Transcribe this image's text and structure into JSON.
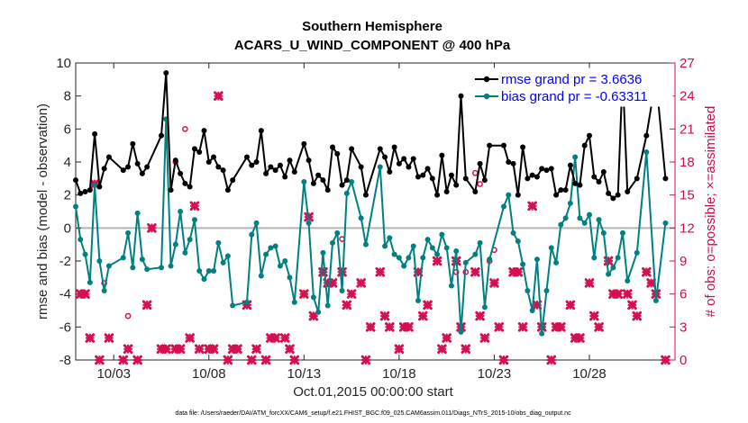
{
  "chart_data": {
    "type": "line",
    "title": "Southern Hemisphere",
    "subtitle": "ACARS_U_WIND_COMPONENT @ 400 hPa",
    "xlabel": "Oct.01,2015 00:00:00 start",
    "ylabel": "rmse and bias (model - observation)",
    "ylabel_right": "# of obs: o=possible; ×=assimilated",
    "xlim": [
      1,
      32.5
    ],
    "ylim": [
      -8,
      10
    ],
    "ylim_right": [
      0,
      27
    ],
    "x_tick_values": [
      3,
      8,
      13,
      18,
      23,
      28
    ],
    "x_tick_labels": [
      "10/03",
      "10/08",
      "10/13",
      "10/18",
      "10/23",
      "10/28"
    ],
    "y_tick_labels": [
      "-8",
      "-6",
      "-4",
      "-2",
      "0",
      "2",
      "4",
      "6",
      "8",
      "10"
    ],
    "y_right_tick_labels": [
      "0",
      "3",
      "6",
      "9",
      "12",
      "15",
      "18",
      "21",
      "24",
      "27"
    ],
    "footer": "data file: /Users/raeder/DAI/ATM_forcXX/CAM6_setup/f.e21.FHIST_BGC.f09_025.CAM6assim.011/Diags_NTrS_2015-10/obs_diag_output.nc",
    "series": [
      {
        "name": "rmse",
        "legend": "rmse grand pr = 3.6636",
        "color": "#000000",
        "x": [
          1.0,
          1.25,
          1.5,
          1.75,
          2.0,
          2.25,
          2.5,
          2.75,
          3.5,
          3.75,
          4.0,
          4.25,
          4.5,
          4.75,
          5.5,
          5.75,
          6.0,
          6.25,
          6.5,
          6.75,
          7.0,
          7.25,
          7.5,
          7.75,
          8.0,
          8.25,
          8.5,
          8.75,
          9.0,
          9.25,
          10.0,
          10.25,
          10.5,
          10.75,
          11.0,
          11.25,
          11.5,
          11.75,
          12.0,
          12.25,
          12.5,
          13.0,
          13.25,
          13.5,
          13.75,
          14.0,
          14.25,
          14.5,
          14.75,
          15.0,
          15.25,
          15.5,
          16.0,
          16.25,
          17.0,
          17.25,
          17.5,
          17.75,
          18.0,
          18.25,
          18.5,
          18.75,
          19.0,
          19.25,
          19.5,
          19.75,
          20.0,
          20.25,
          20.5,
          20.75,
          21.0,
          21.25,
          21.5,
          22.0,
          22.25,
          22.5,
          22.75,
          23.5,
          23.75,
          24.0,
          24.25,
          24.5,
          24.75,
          25.0,
          25.25,
          25.5,
          25.75,
          26.0,
          26.25,
          26.5,
          26.75,
          27.0,
          27.25,
          27.5,
          27.75,
          28.0,
          28.25,
          28.5,
          28.75,
          29.0,
          29.25,
          29.5,
          29.75,
          30.0,
          30.5,
          31.0,
          31.5,
          32.0
        ],
        "values": [
          2.9,
          2.1,
          2.2,
          2.3,
          5.7,
          2.5,
          3.6,
          4.3,
          3.5,
          3.7,
          5.1,
          3.9,
          3.3,
          3.7,
          5.6,
          9.4,
          2.3,
          4.1,
          3.3,
          2.7,
          2.5,
          4.8,
          4.6,
          5.9,
          4.0,
          4.3,
          3.7,
          3.5,
          2.3,
          2.9,
          4.3,
          3.8,
          4.0,
          5.9,
          3.3,
          3.7,
          3.5,
          3.8,
          3.1,
          4.1,
          3.4,
          5.1,
          4.1,
          2.7,
          3.2,
          2.9,
          2.3,
          4.9,
          4.5,
          2.6,
          2.9,
          4.8,
          3.7,
          2.0,
          4.8,
          4.3,
          3.4,
          4.9,
          3.9,
          4.2,
          3.7,
          4.2,
          3.1,
          3.2,
          3.6,
          3.0,
          2.0,
          4.4,
          2.2,
          3.2,
          2.6,
          8.0,
          3.0,
          2.2,
          3.9,
          2.9,
          5.0,
          5.0,
          4.0,
          3.9,
          2.0,
          4.9,
          3.0,
          3.2,
          3.1,
          3.6,
          3.5,
          3.6,
          2.0,
          2.3,
          2.3,
          3.8,
          2.7,
          2.6,
          5.0,
          5.6,
          3.1,
          2.8,
          3.4,
          2.1,
          1.8,
          2.0,
          9.4,
          2.2,
          3.0,
          5.6,
          9.1,
          3.0
        ]
      },
      {
        "name": "bias",
        "legend": "bias grand pr = -0.63311",
        "color": "#008080",
        "x": [
          1.0,
          1.25,
          1.5,
          1.75,
          2.0,
          2.25,
          2.5,
          2.75,
          3.5,
          3.75,
          4.0,
          4.25,
          4.5,
          4.75,
          5.5,
          5.75,
          6.0,
          6.25,
          6.5,
          6.75,
          7.0,
          7.25,
          7.5,
          7.75,
          8.0,
          8.25,
          8.5,
          8.75,
          9.0,
          9.25,
          10.0,
          10.25,
          10.5,
          10.75,
          11.0,
          11.25,
          11.5,
          11.75,
          12.0,
          12.25,
          12.5,
          13.0,
          13.25,
          13.5,
          13.75,
          14.0,
          14.25,
          14.5,
          14.75,
          15.0,
          15.25,
          15.5,
          16.0,
          16.25,
          17.0,
          17.25,
          17.5,
          17.75,
          18.0,
          18.25,
          18.5,
          18.75,
          19.0,
          19.25,
          19.5,
          19.75,
          20.0,
          20.25,
          20.5,
          20.75,
          21.0,
          21.25,
          21.5,
          22.0,
          22.25,
          22.5,
          22.75,
          23.5,
          23.75,
          24.0,
          24.25,
          24.5,
          24.75,
          25.0,
          25.25,
          25.5,
          25.75,
          26.0,
          26.25,
          26.5,
          26.75,
          27.0,
          27.25,
          27.5,
          27.75,
          28.0,
          28.25,
          28.5,
          28.75,
          29.0,
          29.25,
          29.5,
          29.75,
          30.0,
          30.5,
          31.0,
          31.5,
          32.0
        ],
        "values": [
          1.3,
          -0.7,
          -1.6,
          -3.3,
          2.6,
          -2.0,
          -3.8,
          -2.3,
          -1.8,
          -0.3,
          -2.4,
          0.9,
          -1.9,
          -2.5,
          -2.4,
          6.6,
          -2.3,
          -1.0,
          1.0,
          -1.5,
          -0.7,
          0.5,
          -2.6,
          -3.1,
          -2.6,
          -2.6,
          -0.9,
          -2.1,
          -1.7,
          -4.7,
          -4.5,
          -0.4,
          0.3,
          -2.9,
          -1.6,
          -1.2,
          -1.1,
          -2.3,
          -2.0,
          -3.0,
          -4.5,
          2.8,
          0.3,
          -4.2,
          -5.1,
          -1.5,
          -4.7,
          -0.9,
          -0.3,
          -3.8,
          2.1,
          2.8,
          0.6,
          -1.0,
          3.7,
          -1.1,
          -0.6,
          -1.6,
          -1.8,
          -2.3,
          -1.8,
          -1.1,
          -4.4,
          -1.8,
          -0.7,
          -1.2,
          -1.6,
          -0.4,
          -1.2,
          -3.5,
          -1.4,
          -6.3,
          -2.1,
          -1.6,
          -0.9,
          -4.8,
          -1.9,
          1.3,
          2.0,
          -0.3,
          -0.8,
          -2.2,
          -3.8,
          -5.0,
          -1.9,
          -6.4,
          -3.8,
          -1.2,
          -2.1,
          0.2,
          0.6,
          1.5,
          4.3,
          0.6,
          0.3,
          0.8,
          -1.8,
          0.5,
          -0.3,
          -2.8,
          -2.4,
          -1.8,
          -0.3,
          -3.2,
          -1.5,
          4.6,
          -4.4,
          0.3
        ]
      },
      {
        "name": "obs_assimilated",
        "color": "#d6104f",
        "marker": "x",
        "x": [
          1.25,
          1.5,
          1.75,
          2.0,
          2.25,
          2.75,
          3.5,
          3.75,
          4.25,
          4.75,
          5.0,
          5.5,
          5.75,
          6.25,
          6.5,
          7.0,
          7.25,
          7.5,
          8.0,
          8.25,
          8.5,
          9.0,
          9.25,
          9.5,
          10.0,
          10.25,
          10.5,
          11.0,
          11.25,
          11.5,
          12.0,
          12.25,
          12.5,
          13.0,
          13.25,
          13.5,
          14.0,
          14.25,
          14.5,
          15.0,
          15.25,
          15.5,
          16.0,
          16.25,
          16.5,
          17.0,
          17.25,
          17.5,
          18.0,
          18.25,
          18.5,
          19.0,
          19.25,
          19.5,
          20.0,
          20.25,
          20.5,
          21.0,
          21.25,
          21.5,
          22.0,
          22.25,
          22.5,
          23.0,
          23.25,
          23.5,
          24.0,
          24.25,
          24.5,
          25.0,
          25.25,
          25.5,
          26.0,
          26.25,
          26.5,
          27.0,
          27.25,
          27.5,
          28.0,
          28.25,
          28.5,
          29.0,
          29.25,
          29.5,
          30.0,
          30.25,
          30.5,
          31.0,
          31.25,
          31.5,
          32.0
        ],
        "values": [
          6,
          6,
          2,
          16,
          0,
          2,
          0,
          1,
          0,
          5,
          12,
          1,
          1,
          1,
          1,
          2,
          14,
          1,
          1,
          1,
          24,
          0,
          1,
          1,
          5,
          0,
          1,
          0,
          2,
          2,
          2,
          1,
          0,
          6,
          13,
          4,
          8,
          7,
          7,
          8,
          5,
          6,
          7,
          0,
          3,
          8,
          4,
          3,
          1,
          3,
          3,
          8,
          4,
          5,
          9,
          1,
          2,
          9,
          3,
          1,
          8,
          4,
          2,
          7,
          3,
          0,
          8,
          8,
          3,
          14,
          5,
          3,
          0,
          3,
          3,
          5,
          2,
          2,
          7,
          4,
          3,
          9,
          6,
          6,
          6,
          5,
          4,
          8,
          7,
          6,
          0
        ]
      },
      {
        "name": "obs_possible",
        "color": "#d6104f",
        "marker": "o",
        "x": [
          2.5,
          3.75,
          6.25,
          6.75,
          15.0,
          21.0,
          21.5,
          22.0,
          22.25,
          22.75,
          23.0
        ],
        "values": [
          7,
          4,
          18,
          21,
          11,
          8,
          8,
          17,
          16,
          9,
          10
        ]
      }
    ]
  }
}
